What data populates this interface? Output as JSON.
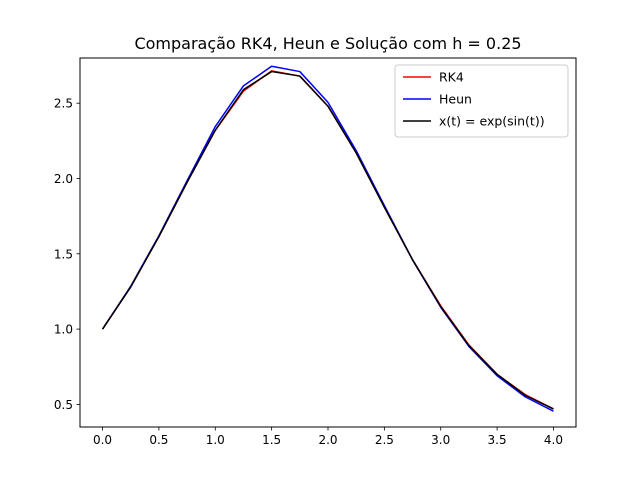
{
  "chart_data": {
    "type": "line",
    "title": "Comparação RK4, Heun e Solução com h = 0.25",
    "xlabel": "",
    "ylabel": "",
    "xlim": [
      -0.2,
      4.2
    ],
    "ylim": [
      0.35,
      2.8
    ],
    "xticks": [
      0.0,
      0.5,
      1.0,
      1.5,
      2.0,
      2.5,
      3.0,
      3.5,
      4.0
    ],
    "xtick_labels": [
      "0.0",
      "0.5",
      "1.0",
      "1.5",
      "2.0",
      "2.5",
      "3.0",
      "3.5",
      "4.0"
    ],
    "yticks": [
      0.5,
      1.0,
      1.5,
      2.0,
      2.5
    ],
    "ytick_labels": [
      "0.5",
      "1.0",
      "1.5",
      "2.0",
      "2.5"
    ],
    "grid": false,
    "legend_position": "top-right",
    "x": [
      0.0,
      0.25,
      0.5,
      0.75,
      1.0,
      1.25,
      1.5,
      1.75,
      2.0,
      2.25,
      2.5,
      2.75,
      3.0,
      3.25,
      3.5,
      3.75,
      4.0
    ],
    "series": [
      {
        "name": "RK4",
        "color": "#ff0000",
        "values": [
          1.0,
          1.28,
          1.615,
          1.975,
          2.32,
          2.58,
          2.715,
          2.68,
          2.48,
          2.17,
          1.81,
          1.46,
          1.155,
          0.895,
          0.7,
          0.565,
          0.47
        ]
      },
      {
        "name": "Heun",
        "color": "#0000ff",
        "values": [
          1.0,
          1.285,
          1.62,
          1.985,
          2.345,
          2.615,
          2.745,
          2.71,
          2.505,
          2.185,
          1.82,
          1.46,
          1.145,
          0.885,
          0.69,
          0.55,
          0.455
        ]
      },
      {
        "name": "x(t) = exp(sin(t))",
        "color": "#000000",
        "values": [
          1.0,
          1.28,
          1.615,
          1.975,
          2.32,
          2.59,
          2.71,
          2.68,
          2.48,
          2.17,
          1.81,
          1.46,
          1.15,
          0.89,
          0.7,
          0.56,
          0.47
        ]
      }
    ]
  }
}
